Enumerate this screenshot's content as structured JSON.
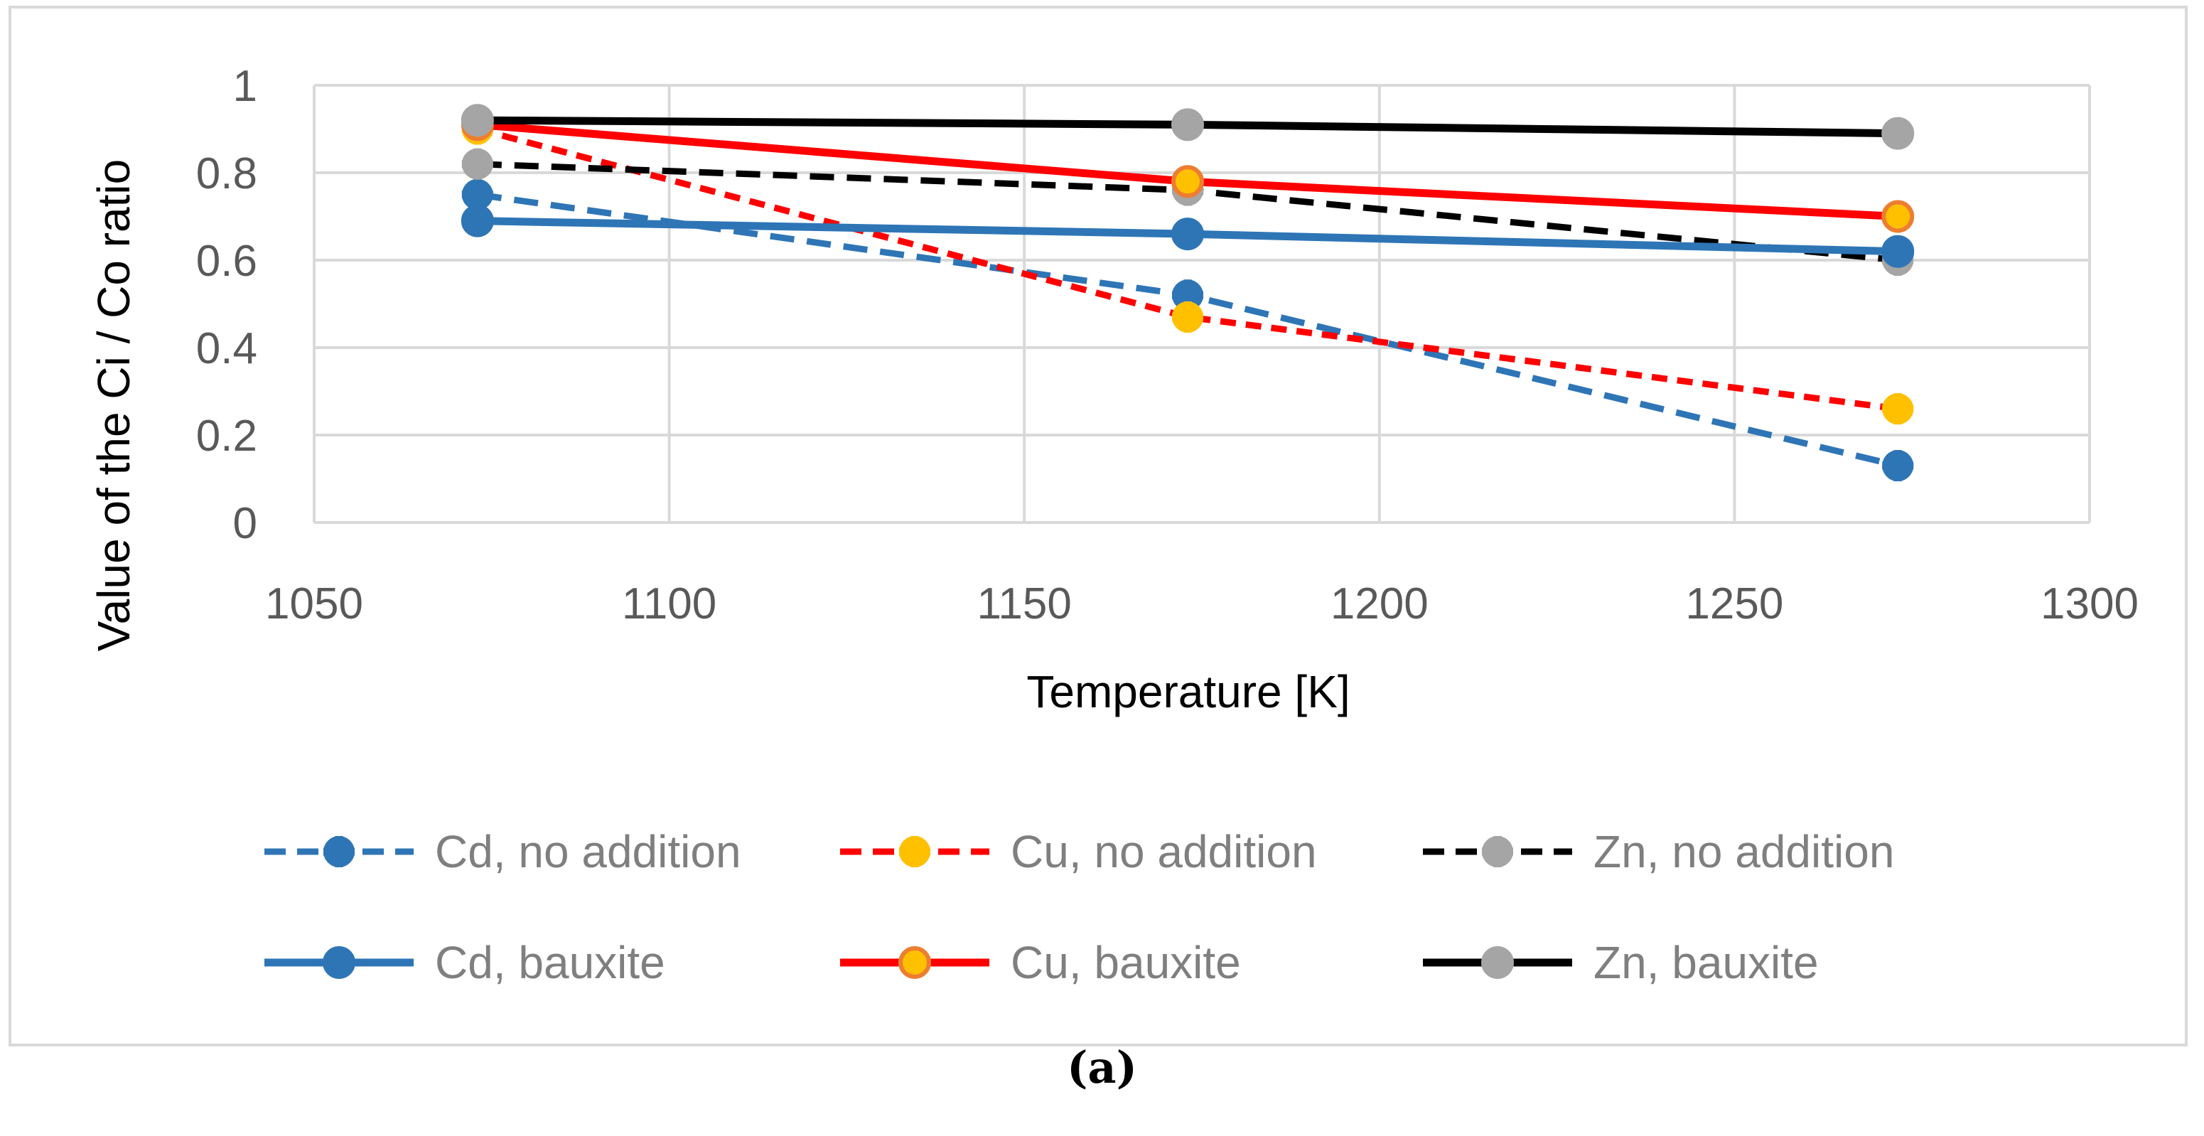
{
  "chart_data": {
    "type": "line",
    "title": "",
    "xlabel": "Temperature [K]",
    "ylabel": "Value of the Ci / Co ratio",
    "xlim": [
      1050,
      1300
    ],
    "ylim": [
      0,
      1
    ],
    "x_ticks": [
      "1050",
      "1100",
      "1150",
      "1200",
      "1250",
      "1300"
    ],
    "y_ticks": [
      "0",
      "0.2",
      "0.4",
      "0.6",
      "0.8",
      "1"
    ],
    "x_tick_values": [
      1050,
      1100,
      1150,
      1200,
      1250,
      1300
    ],
    "y_tick_values": [
      0,
      0.2,
      0.4,
      0.6,
      0.8,
      1
    ],
    "grid": true,
    "legend_position": "bottom",
    "x": [
      1073,
      1173,
      1273
    ],
    "series": [
      {
        "name": "Cd, no addition",
        "values": [
          0.75,
          0.52,
          0.13
        ],
        "line_color": "#2e75b6",
        "marker_fill": "#2e75b6",
        "marker_stroke": "#2e75b6",
        "dash": true,
        "marker_shape": "plus-circle"
      },
      {
        "name": "Cu, no addition",
        "values": [
          0.9,
          0.47,
          0.26
        ],
        "line_color": "#ff0000",
        "marker_fill": "#ffc000",
        "marker_stroke": "#ffc000",
        "dash": true,
        "marker_shape": "plus-circle"
      },
      {
        "name": "Zn, no addition",
        "values": [
          0.82,
          0.76,
          0.6
        ],
        "line_color": "#000000",
        "marker_fill": "#a5a5a5",
        "marker_stroke": "#a5a5a5",
        "dash": true,
        "marker_shape": "plus-circle"
      },
      {
        "name": "Cd, bauxite",
        "values": [
          0.69,
          0.66,
          0.62
        ],
        "line_color": "#2e75b6",
        "marker_fill": "#2e75b6",
        "marker_stroke": "#2e75b6",
        "dash": false,
        "marker_shape": "circle"
      },
      {
        "name": "Cu, bauxite",
        "values": [
          0.91,
          0.78,
          0.7
        ],
        "line_color": "#ff0000",
        "marker_fill": "#ffc000",
        "marker_stroke": "#ed7d31",
        "dash": false,
        "marker_shape": "circle"
      },
      {
        "name": "Zn, bauxite",
        "values": [
          0.92,
          0.91,
          0.89
        ],
        "line_color": "#000000",
        "marker_fill": "#a5a5a5",
        "marker_stroke": "#a5a5a5",
        "dash": false,
        "marker_shape": "circle"
      }
    ]
  },
  "caption": "(a)",
  "colors": {
    "grid": "#d9d9d9",
    "frame": "#d9d9d9",
    "tick_text": "#595959",
    "legend_text": "#7f7f7f"
  }
}
